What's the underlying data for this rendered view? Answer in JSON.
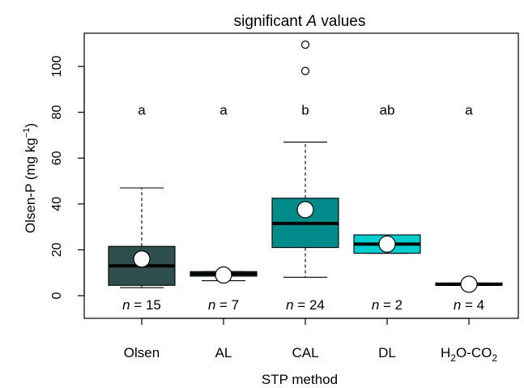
{
  "chart_data": {
    "type": "box",
    "title_prefix": "significant ",
    "title_italic": "A",
    "title_suffix": " values",
    "xlabel": "STP method",
    "ylabel_prefix": "Olsen-P (mg kg",
    "ylabel_superscript": "−1",
    "ylabel_suffix": ")",
    "ylim": [
      -10,
      115
    ],
    "yticks": [
      0,
      20,
      40,
      60,
      80,
      100
    ],
    "categories": [
      "Olsen",
      "AL",
      "CAL",
      "DL",
      "H2O-CO2"
    ],
    "boxes": [
      {
        "label": "Olsen",
        "color": "#2f4f4f",
        "whisker_low": 3.5,
        "q1": 4.5,
        "median": 13,
        "q3": 21.5,
        "whisker_high": 47,
        "mean": 16,
        "outliers": [],
        "letter": "a",
        "n_label": "n",
        "n_value": "= 15"
      },
      {
        "label": "AL",
        "color": "#5e8f8e",
        "whisker_low": 6.5,
        "q1": 8.5,
        "median": 9.5,
        "q3": 10.5,
        "whisker_high": 10.5,
        "mean": 9,
        "outliers": [],
        "letter": "a",
        "n_label": "n",
        "n_value": "= 7"
      },
      {
        "label": "CAL",
        "color": "#008b8b",
        "whisker_low": 8,
        "q1": 21,
        "median": 31.5,
        "q3": 42.5,
        "whisker_high": 67,
        "mean": 37.5,
        "outliers": [
          98,
          109.5
        ],
        "letter": "b",
        "n_label": "n",
        "n_value": "= 24"
      },
      {
        "label": "DL",
        "color": "#00cdcd",
        "whisker_low": 18.5,
        "q1": 18.5,
        "median": 22.5,
        "q3": 26.5,
        "whisker_high": 26.5,
        "mean": 22.5,
        "outliers": [],
        "letter": "ab",
        "n_label": "n",
        "n_value": "= 2"
      },
      {
        "label": "H2O-CO2",
        "color": "#000000",
        "whisker_low": 4.5,
        "q1": 4.5,
        "median": 5,
        "q3": 5.5,
        "whisker_high": 5.5,
        "mean": 5,
        "outliers": [],
        "letter": "a",
        "n_label": "n",
        "n_value": "= 4"
      }
    ]
  }
}
